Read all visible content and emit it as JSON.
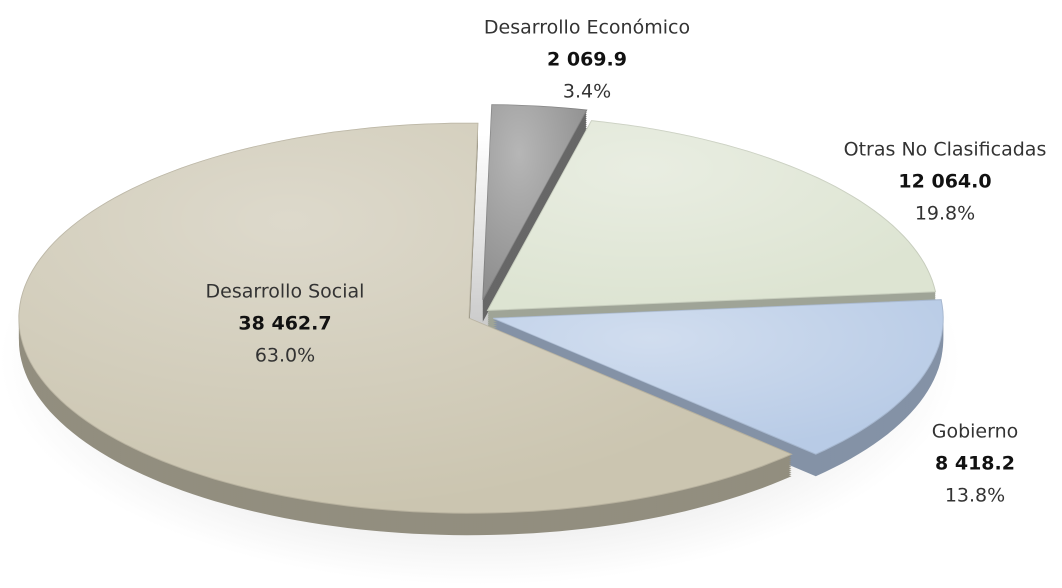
{
  "chart_data": {
    "type": "pie",
    "categories": [
      "Desarrollo Económico",
      "Otras No Clasificadas",
      "Gobierno",
      "Desarrollo Social"
    ],
    "values": [
      2069.9,
      12064.0,
      8418.2,
      38462.7
    ],
    "value_labels": [
      "2 069.9",
      "12 064.0",
      "8 418.2",
      "38 462.7"
    ],
    "shares": [
      3.4,
      19.8,
      13.8,
      63.0
    ],
    "share_labels": [
      "3.4%",
      "19.8%",
      "13.8%",
      "63.0%"
    ],
    "colors": [
      "#8f8f8f",
      "#dde4d2",
      "#b8cbe6",
      "#cbc5b0"
    ]
  }
}
